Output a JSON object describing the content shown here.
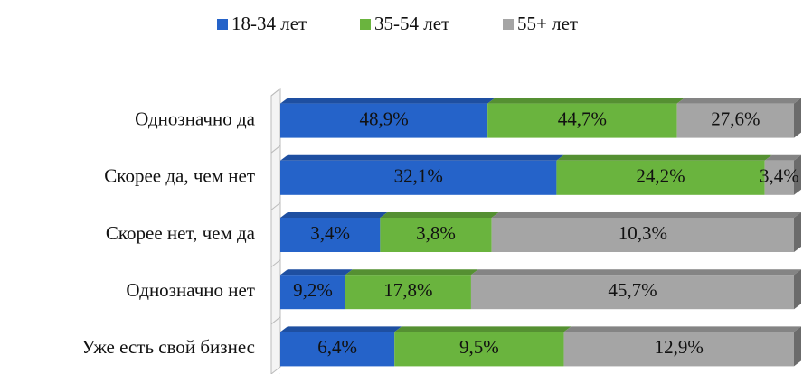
{
  "chart_data": {
    "type": "bar",
    "orientation": "horizontal",
    "stack": "percent",
    "legend": "top",
    "categories": [
      "Однозначно да",
      "Скорее да, чем нет",
      "Скорее нет, чем да",
      "Однозначно нет",
      "Уже есть свой бизнес"
    ],
    "series": [
      {
        "name": "18-34 лет",
        "color": "#2563c9",
        "values": [
          48.9,
          32.1,
          3.4,
          9.2,
          6.4
        ],
        "value_labels": [
          "48,9%",
          "32,1%",
          "3,4%",
          "9,2%",
          "6,4%"
        ]
      },
      {
        "name": "35-54 лет",
        "color": "#6ab43e",
        "values": [
          44.7,
          24.2,
          3.8,
          17.8,
          9.5
        ],
        "value_labels": [
          "44,7%",
          "24,2%",
          "3,8%",
          "17,8%",
          "9,5%"
        ]
      },
      {
        "name": "55+ лет",
        "color": "#a5a5a5",
        "values": [
          27.6,
          3.4,
          10.3,
          45.7,
          12.9
        ],
        "value_labels": [
          "27,6%",
          "3,4%",
          "10,3%",
          "45,7%",
          "12,9%"
        ]
      }
    ]
  }
}
